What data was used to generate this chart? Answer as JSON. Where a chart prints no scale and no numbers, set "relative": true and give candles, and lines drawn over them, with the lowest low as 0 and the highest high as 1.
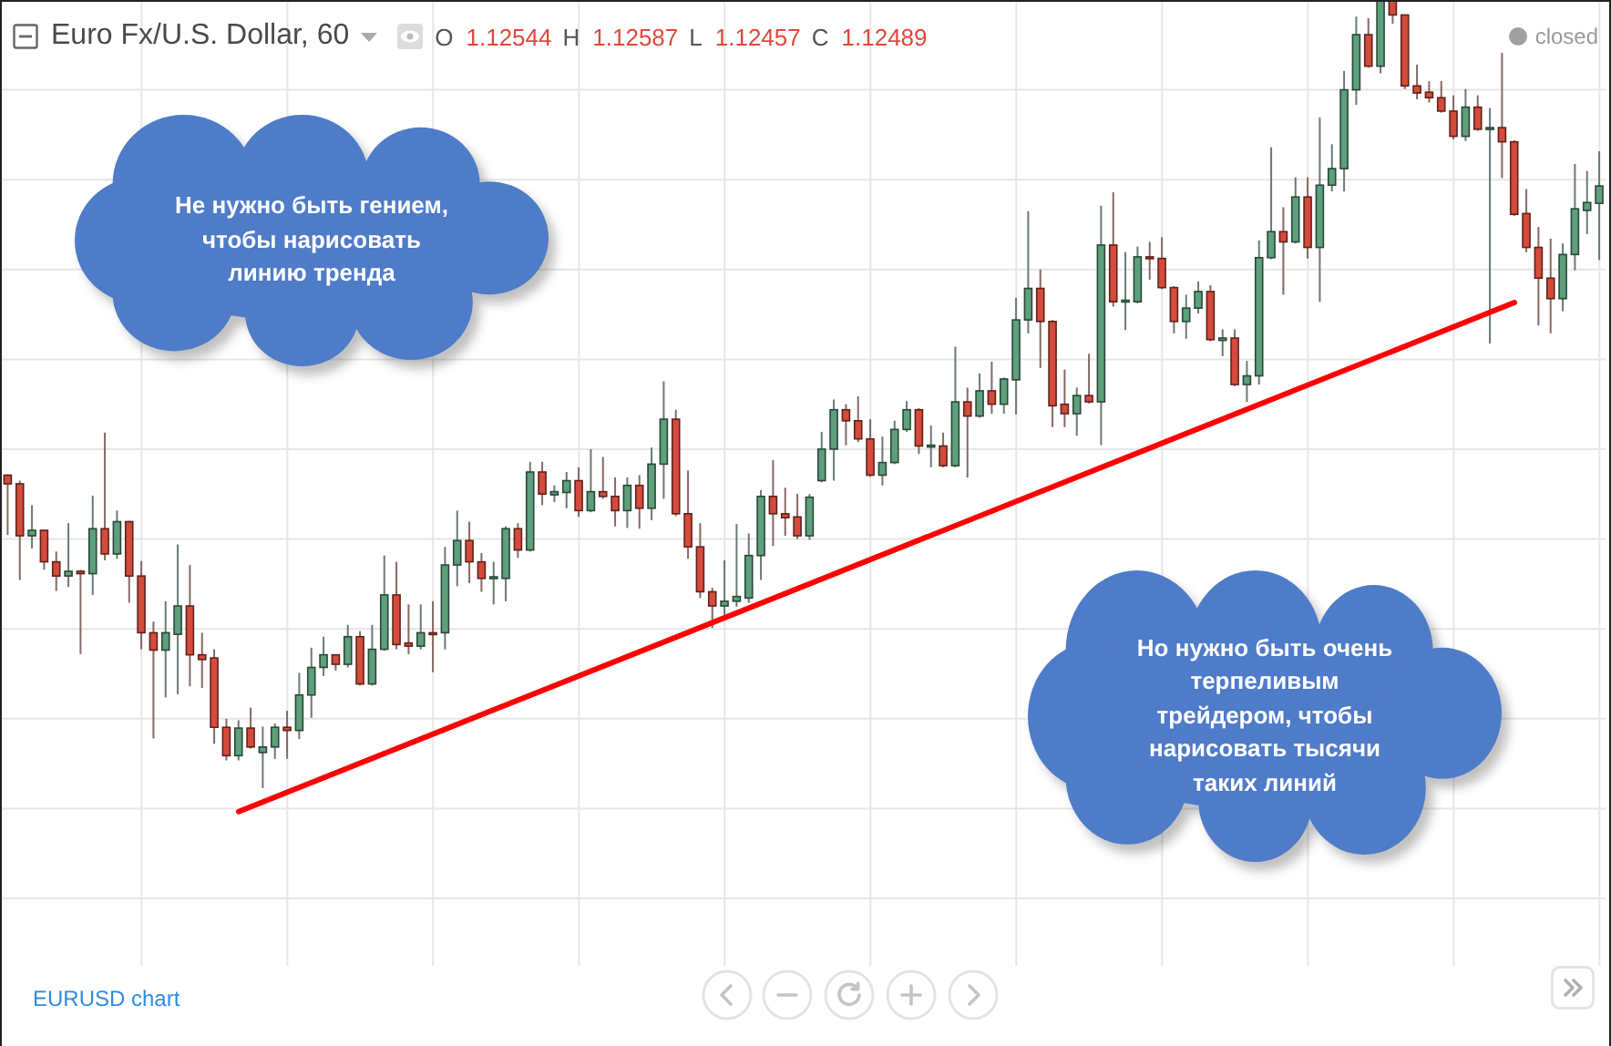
{
  "chart_data": {
    "type": "candlestick",
    "title": "Euro Fx/U.S. Dollar, 60",
    "annotations": [
      "O 1.12544 H 1.12587 L 1.12457 C 1.12489",
      "closed",
      "Не нужно быть гением,\nчтобы нарисовать\nлинию тренда",
      "Но нужно быть очень\nтерпеливым\nтрейдером, чтобы\nнарисовать тысячи\nтаких линий",
      "EURUSD chart"
    ],
    "relative": true,
    "grid": true,
    "categories": [
      null,
      null,
      null,
      null,
      null,
      null,
      null,
      null,
      null,
      null,
      null,
      null,
      null,
      null,
      null,
      null,
      null,
      null,
      null,
      null,
      null,
      null,
      null,
      null,
      null,
      null,
      null,
      null,
      null,
      null,
      null,
      null,
      null,
      null,
      null,
      null,
      null,
      null,
      null,
      null,
      null,
      null,
      null,
      null,
      null,
      null,
      null,
      null,
      null,
      null,
      null,
      null,
      null,
      null,
      null,
      null,
      null,
      null,
      null,
      null,
      null,
      null,
      null,
      null,
      null,
      null,
      null,
      null,
      null,
      null,
      null,
      null,
      null,
      null,
      null,
      null,
      null,
      null,
      null,
      null,
      null,
      null,
      null,
      null,
      null,
      null,
      null,
      null,
      null,
      null,
      null,
      null,
      null,
      null,
      null,
      null,
      null,
      null,
      null,
      null,
      null,
      null,
      null,
      null,
      null,
      null,
      null,
      null,
      null,
      null,
      null,
      null,
      null,
      null,
      null,
      null,
      null,
      null,
      null,
      null,
      null,
      null,
      null,
      null,
      null,
      null,
      null,
      null,
      null,
      null,
      null,
      null
    ],
    "ohlc": [
      [
        0.397,
        0.398,
        0.321,
        0.386
      ],
      [
        0.386,
        0.39,
        0.264,
        0.32
      ],
      [
        0.32,
        0.359,
        0.304,
        0.327
      ],
      [
        0.327,
        0.327,
        0.277,
        0.287
      ],
      [
        0.287,
        0.3,
        0.25,
        0.269
      ],
      [
        0.269,
        0.336,
        0.255,
        0.275
      ],
      [
        0.275,
        0.277,
        0.17,
        0.272
      ],
      [
        0.272,
        0.371,
        0.245,
        0.329
      ],
      [
        0.329,
        0.451,
        0.289,
        0.297
      ],
      [
        0.297,
        0.352,
        0.291,
        0.338
      ],
      [
        0.338,
        0.339,
        0.235,
        0.269
      ],
      [
        0.269,
        0.288,
        0.176,
        0.197
      ],
      [
        0.197,
        0.211,
        0.063,
        0.175
      ],
      [
        0.175,
        0.237,
        0.115,
        0.197
      ],
      [
        0.195,
        0.309,
        0.119,
        0.231
      ],
      [
        0.231,
        0.283,
        0.129,
        0.169
      ],
      [
        0.169,
        0.197,
        0.127,
        0.163
      ],
      [
        0.165,
        0.176,
        0.056,
        0.077
      ],
      [
        0.077,
        0.088,
        0.035,
        0.041
      ],
      [
        0.041,
        0.086,
        0.035,
        0.076
      ],
      [
        0.076,
        0.102,
        0.05,
        0.052
      ],
      [
        0.045,
        0.078,
        0,
        0.052
      ],
      [
        0.052,
        0.082,
        0.037,
        0.077
      ],
      [
        0.077,
        0.098,
        0.037,
        0.073
      ],
      [
        0.073,
        0.146,
        0.062,
        0.118
      ],
      [
        0.118,
        0.178,
        0.089,
        0.153
      ],
      [
        0.153,
        0.192,
        0.142,
        0.169
      ],
      [
        0.169,
        0.169,
        0.149,
        0.157
      ],
      [
        0.157,
        0.207,
        0.153,
        0.192
      ],
      [
        0.192,
        0.199,
        0.13,
        0.132
      ],
      [
        0.132,
        0.207,
        0.13,
        0.176
      ],
      [
        0.176,
        0.295,
        0.174,
        0.245
      ],
      [
        0.245,
        0.287,
        0.176,
        0.182
      ],
      [
        0.184,
        0.233,
        0.17,
        0.18
      ],
      [
        0.18,
        0.233,
        0.176,
        0.197
      ],
      [
        0.197,
        0.237,
        0.147,
        0.195
      ],
      [
        0.197,
        0.306,
        0.176,
        0.283
      ],
      [
        0.283,
        0.352,
        0.256,
        0.314
      ],
      [
        0.314,
        0.338,
        0.26,
        0.287
      ],
      [
        0.287,
        0.298,
        0.249,
        0.266
      ],
      [
        0.266,
        0.287,
        0.233,
        0.268
      ],
      [
        0.266,
        0.332,
        0.237,
        0.329
      ],
      [
        0.329,
        0.336,
        0.292,
        0.302
      ],
      [
        0.302,
        0.414,
        0.3,
        0.401
      ],
      [
        0.401,
        0.414,
        0.359,
        0.373
      ],
      [
        0.372,
        0.384,
        0.363,
        0.376
      ],
      [
        0.375,
        0.401,
        0.355,
        0.39
      ],
      [
        0.39,
        0.407,
        0.344,
        0.352
      ],
      [
        0.352,
        0.43,
        0.35,
        0.376
      ],
      [
        0.376,
        0.42,
        0.367,
        0.37
      ],
      [
        0.37,
        0.394,
        0.332,
        0.352
      ],
      [
        0.352,
        0.394,
        0.33,
        0.384
      ],
      [
        0.384,
        0.397,
        0.329,
        0.355
      ],
      [
        0.355,
        0.432,
        0.34,
        0.411
      ],
      [
        0.411,
        0.516,
        0.367,
        0.468
      ],
      [
        0.468,
        0.48,
        0.345,
        0.348
      ],
      [
        0.348,
        0.403,
        0.291,
        0.306
      ],
      [
        0.306,
        0.336,
        0.241,
        0.249
      ],
      [
        0.249,
        0.254,
        0.203,
        0.231
      ],
      [
        0.231,
        0.289,
        0.218,
        0.237
      ],
      [
        0.237,
        0.335,
        0.23,
        0.243
      ],
      [
        0.241,
        0.323,
        0.235,
        0.295
      ],
      [
        0.295,
        0.378,
        0.264,
        0.37
      ],
      [
        0.37,
        0.416,
        0.307,
        0.348
      ],
      [
        0.348,
        0.381,
        0.32,
        0.343
      ],
      [
        0.344,
        0.373,
        0.316,
        0.32
      ],
      [
        0.32,
        0.373,
        0.315,
        0.369
      ],
      [
        0.39,
        0.452,
        0.388,
        0.43
      ],
      [
        0.43,
        0.493,
        0.39,
        0.48
      ],
      [
        0.48,
        0.487,
        0.435,
        0.466
      ],
      [
        0.466,
        0.497,
        0.439,
        0.443
      ],
      [
        0.443,
        0.468,
        0.395,
        0.397
      ],
      [
        0.397,
        0.446,
        0.384,
        0.413
      ],
      [
        0.413,
        0.466,
        0.411,
        0.455
      ],
      [
        0.455,
        0.491,
        0.452,
        0.48
      ],
      [
        0.48,
        0.482,
        0.424,
        0.434
      ],
      [
        0.434,
        0.46,
        0.407,
        0.435
      ],
      [
        0.434,
        0.451,
        0.407,
        0.409
      ],
      [
        0.409,
        0.56,
        0.407,
        0.49
      ],
      [
        0.49,
        0.508,
        0.394,
        0.472
      ],
      [
        0.472,
        0.526,
        0.47,
        0.504
      ],
      [
        0.504,
        0.541,
        0.475,
        0.487
      ],
      [
        0.487,
        0.521,
        0.475,
        0.519
      ],
      [
        0.518,
        0.622,
        0.474,
        0.594
      ],
      [
        0.594,
        0.732,
        0.577,
        0.634
      ],
      [
        0.634,
        0.658,
        0.533,
        0.592
      ],
      [
        0.592,
        0.594,
        0.458,
        0.485
      ],
      [
        0.487,
        0.531,
        0.458,
        0.475
      ],
      [
        0.475,
        0.508,
        0.447,
        0.498
      ],
      [
        0.498,
        0.551,
        0.488,
        0.49
      ],
      [
        0.49,
        0.739,
        0.435,
        0.689
      ],
      [
        0.689,
        0.756,
        0.611,
        0.617
      ],
      [
        0.617,
        0.68,
        0.581,
        0.619
      ],
      [
        0.617,
        0.687,
        0.615,
        0.674
      ],
      [
        0.674,
        0.693,
        0.645,
        0.672
      ],
      [
        0.672,
        0.699,
        0.633,
        0.635
      ],
      [
        0.635,
        0.637,
        0.577,
        0.592
      ],
      [
        0.592,
        0.626,
        0.57,
        0.609
      ],
      [
        0.609,
        0.643,
        0.602,
        0.63
      ],
      [
        0.63,
        0.638,
        0.567,
        0.569
      ],
      [
        0.568,
        0.582,
        0.548,
        0.571
      ],
      [
        0.571,
        0.582,
        0.51,
        0.512
      ],
      [
        0.512,
        0.542,
        0.49,
        0.523
      ],
      [
        0.523,
        0.695,
        0.512,
        0.673
      ],
      [
        0.673,
        0.813,
        0.671,
        0.706
      ],
      [
        0.706,
        0.737,
        0.626,
        0.693
      ],
      [
        0.693,
        0.775,
        0.691,
        0.75
      ],
      [
        0.75,
        0.775,
        0.672,
        0.686
      ],
      [
        0.686,
        0.851,
        0.617,
        0.765
      ],
      [
        0.765,
        0.817,
        0.757,
        0.786
      ],
      [
        0.786,
        0.91,
        0.757,
        0.886
      ],
      [
        0.886,
        0.979,
        0.867,
        0.956
      ],
      [
        0.956,
        0.977,
        0.914,
        0.916
      ],
      [
        0.916,
        1,
        0.907,
        1
      ],
      [
        1,
        1,
        0.97,
        0.981
      ],
      [
        0.981,
        0.981,
        0.887,
        0.891
      ],
      [
        0.891,
        0.918,
        0.874,
        0.882
      ],
      [
        0.883,
        0.897,
        0.87,
        0.876
      ],
      [
        0.876,
        0.897,
        0.857,
        0.859
      ],
      [
        0.859,
        0.879,
        0.823,
        0.827
      ],
      [
        0.827,
        0.887,
        0.821,
        0.864
      ],
      [
        0.864,
        0.879,
        0.834,
        0.836
      ],
      [
        0.836,
        0.863,
        0.564,
        0.838
      ],
      [
        0.838,
        0.933,
        0.774,
        0.82
      ],
      [
        0.82,
        0.822,
        0.726,
        0.728
      ],
      [
        0.729,
        0.76,
        0.68,
        0.686
      ],
      [
        0.686,
        0.712,
        0.587,
        0.647
      ],
      [
        0.647,
        0.697,
        0.577,
        0.621
      ],
      [
        0.621,
        0.691,
        0.605,
        0.677
      ],
      [
        0.677,
        0.792,
        0.657,
        0.735
      ],
      [
        0.733,
        0.783,
        0.703,
        0.743
      ],
      [
        0.742,
        0.808,
        0.67,
        0.764
      ]
    ],
    "colors": [
      "#d44b3c",
      "#d44b3c",
      "#5e9f7c",
      "#d44b3c",
      "#d44b3c",
      "#5e9f7c",
      "#d44b3c",
      "#5e9f7c",
      "#d44b3c",
      "#5e9f7c",
      "#d44b3c",
      "#d44b3c",
      "#d44b3c",
      "#5e9f7c",
      "#5e9f7c",
      "#d44b3c",
      "#d44b3c",
      "#d44b3c",
      "#d44b3c",
      "#5e9f7c",
      "#d44b3c",
      "#5e9f7c",
      "#5e9f7c",
      "#d44b3c",
      "#5e9f7c",
      "#5e9f7c",
      "#5e9f7c",
      "#d44b3c",
      "#5e9f7c",
      "#d44b3c",
      "#5e9f7c",
      "#5e9f7c",
      "#d44b3c",
      "#d44b3c",
      "#5e9f7c",
      "#d44b3c",
      "#5e9f7c",
      "#5e9f7c",
      "#d44b3c",
      "#d44b3c",
      "#5e9f7c",
      "#5e9f7c",
      "#d44b3c",
      "#5e9f7c",
      "#d44b3c",
      "#5e9f7c",
      "#5e9f7c",
      "#d44b3c",
      "#5e9f7c",
      "#d44b3c",
      "#d44b3c",
      "#5e9f7c",
      "#d44b3c",
      "#5e9f7c",
      "#5e9f7c",
      "#d44b3c",
      "#d44b3c",
      "#d44b3c",
      "#d44b3c",
      "#5e9f7c",
      "#5e9f7c",
      "#5e9f7c",
      "#5e9f7c",
      "#d44b3c",
      "#d44b3c",
      "#d44b3c",
      "#5e9f7c",
      "#5e9f7c",
      "#5e9f7c",
      "#d44b3c",
      "#d44b3c",
      "#d44b3c",
      "#5e9f7c",
      "#5e9f7c",
      "#5e9f7c",
      "#d44b3c",
      "#5e9f7c",
      "#d44b3c",
      "#5e9f7c",
      "#d44b3c",
      "#5e9f7c",
      "#d44b3c",
      "#5e9f7c",
      "#5e9f7c",
      "#5e9f7c",
      "#d44b3c",
      "#d44b3c",
      "#d44b3c",
      "#5e9f7c",
      "#d44b3c",
      "#5e9f7c",
      "#d44b3c",
      "#5e9f7c",
      "#5e9f7c",
      "#d44b3c",
      "#d44b3c",
      "#d44b3c",
      "#5e9f7c",
      "#5e9f7c",
      "#d44b3c",
      "#5e9f7c",
      "#d44b3c",
      "#5e9f7c",
      "#5e9f7c",
      "#5e9f7c",
      "#d44b3c",
      "#5e9f7c",
      "#d44b3c",
      "#5e9f7c",
      "#5e9f7c",
      "#5e9f7c",
      "#5e9f7c",
      "#d44b3c",
      "#5e9f7c",
      "#d44b3c",
      "#d44b3c",
      "#d44b3c",
      "#d44b3c",
      "#d44b3c",
      "#d44b3c",
      "#5e9f7c",
      "#d44b3c",
      "#5e9f7c",
      "#d44b3c",
      "#d44b3c",
      "#d44b3c",
      "#d44b3c",
      "#d44b3c",
      "#5e9f7c",
      "#5e9f7c",
      "#5e9f7c",
      "#5e9f7c"
    ],
    "series": [
      {
        "type": "line",
        "color": "#ff0000",
        "values": [
          null,
          null,
          null,
          null,
          null,
          null,
          null,
          null,
          null,
          null,
          null,
          null,
          null,
          null,
          null,
          null,
          null,
          null,
          null,
          -0.03,
          null,
          null,
          null,
          null,
          null,
          null,
          null,
          null,
          null,
          null,
          null,
          null,
          null,
          null,
          null,
          null,
          null,
          null,
          null,
          null,
          null,
          null,
          null,
          null,
          null,
          null,
          null,
          null,
          null,
          null,
          null,
          null,
          null,
          null,
          null,
          null,
          null,
          null,
          null,
          null,
          null,
          null,
          null,
          null,
          null,
          null,
          null,
          null,
          null,
          null,
          null,
          null,
          null,
          null,
          null,
          null,
          null,
          null,
          null,
          null,
          null,
          null,
          null,
          null,
          null,
          null,
          null,
          null,
          null,
          null,
          null,
          null,
          null,
          null,
          null,
          null,
          null,
          null,
          null,
          null,
          null,
          null,
          null,
          null,
          null,
          null,
          null,
          null,
          null,
          null,
          null,
          null,
          null,
          null,
          null,
          null,
          null,
          null,
          null,
          null,
          null,
          null,
          null,
          null,
          0.616,
          null,
          null,
          null,
          null,
          null,
          null,
          null
        ]
      }
    ]
  }
}
